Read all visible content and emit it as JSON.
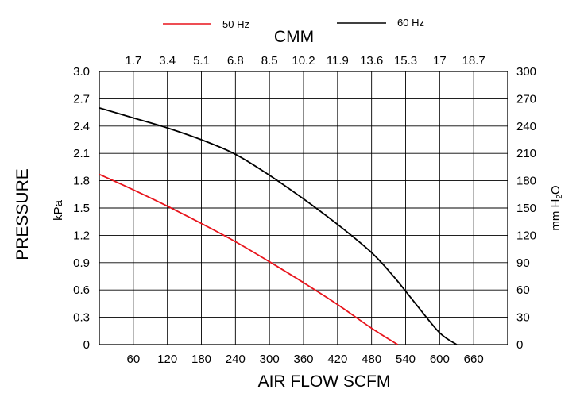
{
  "chart_data": {
    "type": "line",
    "top_axis_title": "CMM",
    "top_ticks": [
      "1.7",
      "3.4",
      "5.1",
      "6.8",
      "8.5",
      "10.2",
      "11.9",
      "13.6",
      "15.3",
      "17",
      "18.7"
    ],
    "top_tick_scfm": [
      60,
      120,
      180,
      240,
      300,
      360,
      420,
      480,
      540,
      600,
      660
    ],
    "x_title": "AIR FLOW  SCFM",
    "x_ticks": [
      60,
      120,
      180,
      240,
      300,
      360,
      420,
      480,
      540,
      600,
      660
    ],
    "xlim": [
      0,
      720
    ],
    "y_title": "PRESSURE",
    "y_unit": "kPa",
    "y_ticks": [
      "0",
      "0.3",
      "0.6",
      "0.9",
      "1.2",
      "1.5",
      "1.8",
      "2.1",
      "2.4",
      "2.7",
      "3.0"
    ],
    "ylim": [
      0,
      3.0
    ],
    "y2_unit_main": "mm H",
    "y2_unit_sub": "2",
    "y2_unit_end": "O",
    "y2_ticks": [
      "0",
      "30",
      "60",
      "90",
      "120",
      "150",
      "180",
      "210",
      "240",
      "270",
      "300"
    ],
    "grid": true,
    "legend_position": "top",
    "series": [
      {
        "name": "50 Hz",
        "color": "#e8141c",
        "points": [
          [
            0,
            1.87
          ],
          [
            60,
            1.7
          ],
          [
            120,
            1.52
          ],
          [
            180,
            1.33
          ],
          [
            240,
            1.13
          ],
          [
            300,
            0.91
          ],
          [
            360,
            0.68
          ],
          [
            420,
            0.44
          ],
          [
            480,
            0.18
          ],
          [
            526,
            0.0
          ]
        ]
      },
      {
        "name": "60 Hz",
        "color": "#000000",
        "points": [
          [
            0,
            2.6
          ],
          [
            60,
            2.49
          ],
          [
            120,
            2.38
          ],
          [
            180,
            2.25
          ],
          [
            240,
            2.09
          ],
          [
            300,
            1.86
          ],
          [
            360,
            1.6
          ],
          [
            420,
            1.32
          ],
          [
            480,
            1.01
          ],
          [
            520,
            0.74
          ],
          [
            560,
            0.43
          ],
          [
            600,
            0.13
          ],
          [
            630,
            0.0
          ]
        ]
      }
    ]
  }
}
